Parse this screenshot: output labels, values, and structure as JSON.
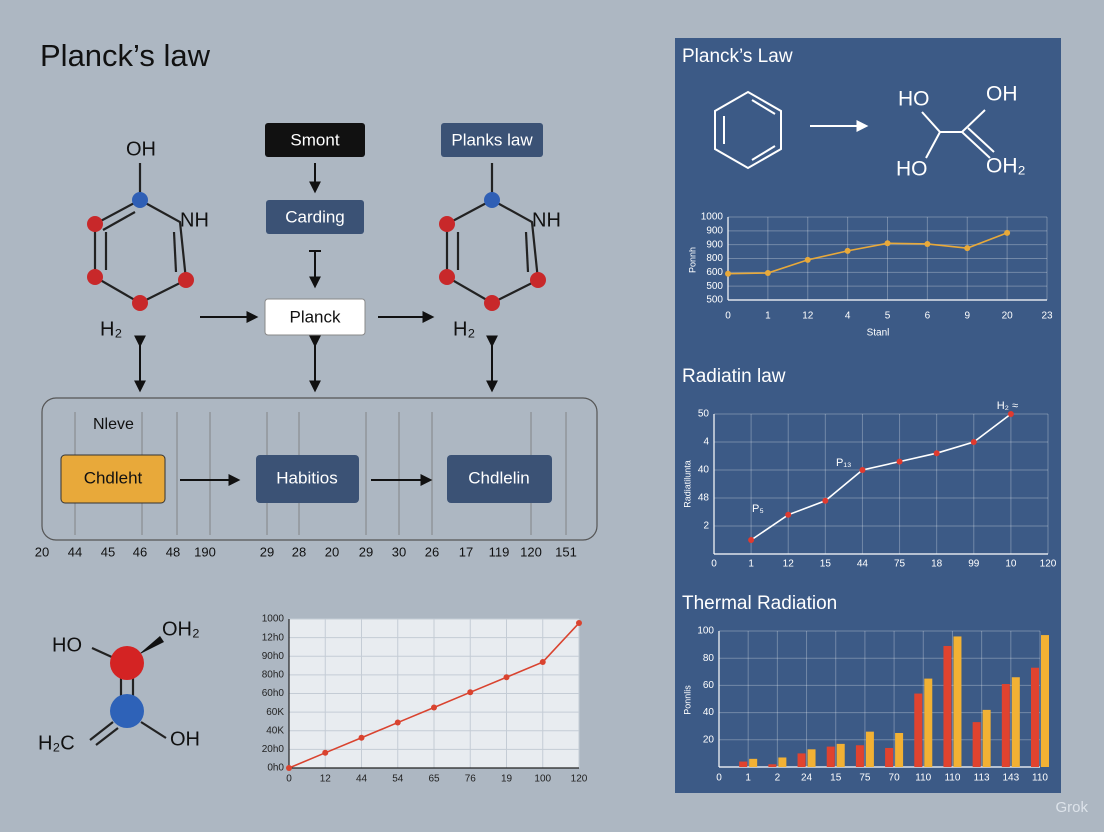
{
  "title": "Planck’s law",
  "molecule_left": {
    "labels": [
      "OH",
      "NH",
      "H₂"
    ]
  },
  "flow": {
    "boxes": [
      "Smont",
      "Carding",
      "Planck",
      "Planks law"
    ]
  },
  "molecule_right": {
    "labels": [
      "NH",
      "H₂"
    ]
  },
  "process": {
    "label": "Nleve",
    "boxes": [
      "Chdleht",
      "Habitios",
      "Chdlelin"
    ]
  },
  "number_row": [
    20,
    44,
    45,
    46,
    48,
    190,
    29,
    28,
    20,
    29,
    30,
    26,
    17,
    119,
    120,
    151
  ],
  "molecule_bottom": {
    "labels": [
      "HO",
      "OH₂",
      "H₂C",
      "OH"
    ]
  },
  "panel": {
    "title": "Planck’s Law",
    "reaction_labels": [
      "HO",
      "OH",
      "HO",
      "OH₂"
    ]
  },
  "charts": [
    {
      "type": "line",
      "y_label": "Ponnh",
      "x_label": "Stanl",
      "color": "#e8a93a",
      "marker_color": "#e8a93a",
      "categories": [
        "0",
        "1",
        "12",
        "4",
        "5",
        "6",
        "9",
        "20",
        "23"
      ],
      "values": [
        590,
        595,
        690,
        755,
        810,
        805,
        775,
        885,
        null
      ],
      "ylim": [
        400,
        1000
      ],
      "yticks": [
        {
          "value": 400,
          "label": "500"
        },
        500,
        600,
        {
          "value": 700,
          "label": "800"
        },
        {
          "value": 800,
          "label": "900"
        },
        900,
        1000
      ],
      "grid": true
    },
    {
      "type": "line",
      "title": "Radiatin law",
      "y_label": "Radiatilunta",
      "color": "#ffffff",
      "marker_color": "#e03a2f",
      "categories": [
        "0",
        "1",
        "12",
        "15",
        "44",
        "75",
        "18",
        "99",
        "10",
        "120"
      ],
      "values": [
        null,
        5,
        14,
        19,
        30,
        33,
        36,
        40,
        50,
        null
      ],
      "ylim": [
        0,
        50
      ],
      "yticks": [
        {
          "value": 10,
          "label": "2"
        },
        {
          "value": 20,
          "label": "48"
        },
        {
          "value": 30,
          "label": "40"
        },
        {
          "value": 40,
          "label": "4"
        },
        50
      ],
      "annotations": [
        "P₅",
        "P₁₃",
        "H₂ ≈"
      ],
      "grid": true
    },
    {
      "type": "bar",
      "title": "Thermal Radiation",
      "y_label": "Ponnlis",
      "categories": [
        "0",
        "1",
        "2",
        "24",
        "15",
        "75",
        "70",
        "110",
        "110",
        "113",
        "143",
        "110"
      ],
      "series": [
        {
          "color": "#e0432f",
          "values": [
            null,
            4,
            2,
            10,
            15,
            16,
            14,
            54,
            89,
            33,
            61,
            73
          ]
        },
        {
          "color": "#f2b134",
          "values": [
            null,
            6,
            7,
            13,
            17,
            26,
            25,
            65,
            96,
            42,
            66,
            97
          ]
        }
      ],
      "ylim": [
        0,
        100
      ],
      "yticks": [
        20,
        40,
        60,
        80,
        100
      ],
      "grid": true
    },
    {
      "type": "line",
      "color": "#d9432f",
      "marker_color": "#d9432f",
      "categories": [
        "0",
        "12",
        "44",
        "54",
        "65",
        "76",
        "19",
        "100",
        "120"
      ],
      "values": [
        0,
        102,
        203,
        305,
        406,
        508,
        609,
        711,
        973
      ],
      "ylim": [
        0,
        1000
      ],
      "yticks": [
        {
          "value": 0,
          "label": "0h0"
        },
        {
          "value": 125,
          "label": "20h0"
        },
        {
          "value": 250,
          "label": "40K"
        },
        {
          "value": 375,
          "label": "60K"
        },
        {
          "value": 500,
          "label": "60h0"
        },
        {
          "value": 625,
          "label": "80h0"
        },
        {
          "value": 750,
          "label": "90h0"
        },
        {
          "value": 875,
          "label": "12h0"
        },
        1000
      ],
      "grid": true
    }
  ],
  "watermark": "Grok"
}
